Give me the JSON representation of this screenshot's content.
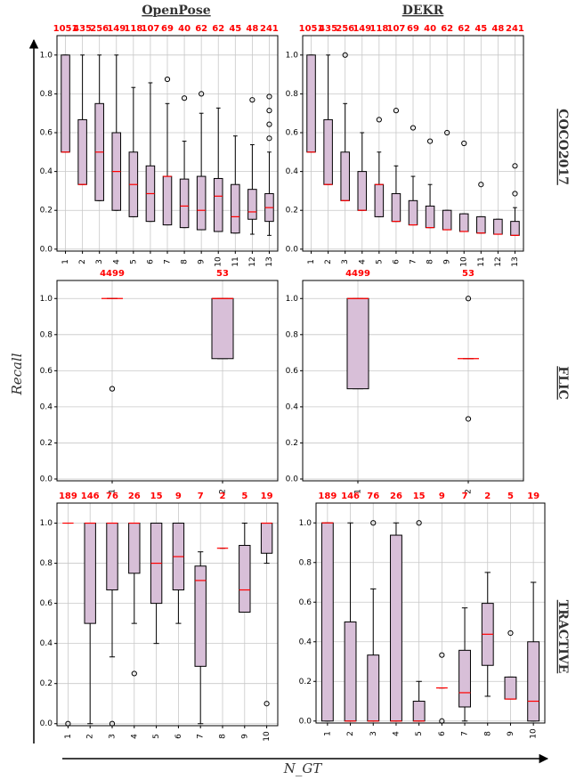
{
  "figure": {
    "column_titles": [
      "OpenPose",
      "DEKR"
    ],
    "row_titles": [
      "COCO2017",
      "FLIC",
      "TRACTIVE"
    ],
    "ylabel": "Recall",
    "xlabel": "N_GT"
  },
  "chart_data": [
    {
      "type": "box",
      "color": "#d8bfd8",
      "median_color": "#ff0000",
      "grid": true,
      "ylim": [
        -0.01,
        1.1
      ],
      "yticks": [
        {
          "value": 0,
          "label": "0.0"
        },
        {
          "value": 0.2,
          "label": "0.2"
        },
        {
          "value": 0.4,
          "label": "0.4"
        },
        {
          "value": 0.6,
          "label": "0.6"
        },
        {
          "value": 0.8,
          "label": "0.8"
        },
        {
          "value": 1,
          "label": "1.0"
        }
      ],
      "categories": [
        "1",
        "2",
        "3",
        "4",
        "5",
        "6",
        "7",
        "8",
        "9",
        "10",
        "11",
        "12",
        "13"
      ],
      "counts": [
        1051,
        435,
        256,
        149,
        118,
        107,
        69,
        40,
        62,
        62,
        45,
        48,
        241
      ],
      "boxes": [
        {
          "low": 0.5,
          "q1": 0.5,
          "median": 0.5,
          "q3": 1,
          "high": 1,
          "outliers": []
        },
        {
          "low": 0.333,
          "q1": 0.333,
          "median": 0.333,
          "q3": 0.667,
          "high": 1,
          "outliers": []
        },
        {
          "low": 0.25,
          "q1": 0.25,
          "median": 0.5,
          "q3": 0.75,
          "high": 1,
          "outliers": []
        },
        {
          "low": 0.2,
          "q1": 0.2,
          "median": 0.4,
          "q3": 0.6,
          "high": 1,
          "outliers": []
        },
        {
          "low": 0.167,
          "q1": 0.167,
          "median": 0.333,
          "q3": 0.5,
          "high": 0.833,
          "outliers": []
        },
        {
          "low": 0.143,
          "q1": 0.143,
          "median": 0.286,
          "q3": 0.429,
          "high": 0.857,
          "outliers": []
        },
        {
          "low": 0.125,
          "q1": 0.125,
          "median": 0.375,
          "q3": 0.375,
          "high": 0.75,
          "outliers": [
            0.875
          ]
        },
        {
          "low": 0.111,
          "q1": 0.111,
          "median": 0.222,
          "q3": 0.361,
          "high": 0.556,
          "outliers": [
            0.778
          ]
        },
        {
          "low": 0.1,
          "q1": 0.1,
          "median": 0.2,
          "q3": 0.375,
          "high": 0.7,
          "outliers": [
            0.8
          ]
        },
        {
          "low": 0.091,
          "q1": 0.091,
          "median": 0.273,
          "q3": 0.364,
          "high": 0.727,
          "outliers": []
        },
        {
          "low": 0.083,
          "q1": 0.083,
          "median": 0.167,
          "q3": 0.333,
          "high": 0.583,
          "outliers": []
        },
        {
          "low": 0.077,
          "q1": 0.154,
          "median": 0.192,
          "q3": 0.308,
          "high": 0.538,
          "outliers": [
            0.769
          ]
        },
        {
          "low": 0.071,
          "q1": 0.143,
          "median": 0.214,
          "q3": 0.286,
          "high": 0.5,
          "outliers": [
            0.571,
            0.643,
            0.714,
            0.786
          ]
        }
      ]
    },
    {
      "type": "box",
      "color": "#d8bfd8",
      "median_color": "#ff0000",
      "grid": true,
      "ylim": [
        -0.01,
        1.1
      ],
      "yticks": [
        {
          "value": 0,
          "label": "0.0"
        },
        {
          "value": 0.2,
          "label": "0.2"
        },
        {
          "value": 0.4,
          "label": "0.4"
        },
        {
          "value": 0.6,
          "label": "0.6"
        },
        {
          "value": 0.8,
          "label": "0.8"
        },
        {
          "value": 1,
          "label": "1.0"
        }
      ],
      "categories": [
        "1",
        "2",
        "3",
        "4",
        "5",
        "6",
        "7",
        "8",
        "9",
        "10",
        "11",
        "12",
        "13"
      ],
      "counts": [
        1051,
        435,
        256,
        149,
        118,
        107,
        69,
        40,
        62,
        62,
        45,
        48,
        241
      ],
      "boxes": [
        {
          "low": 0.5,
          "q1": 0.5,
          "median": 0.5,
          "q3": 1,
          "high": 1,
          "outliers": []
        },
        {
          "low": 0.333,
          "q1": 0.333,
          "median": 0.333,
          "q3": 0.667,
          "high": 1,
          "outliers": []
        },
        {
          "low": 0.25,
          "q1": 0.25,
          "median": 0.25,
          "q3": 0.5,
          "high": 0.75,
          "outliers": [
            1
          ]
        },
        {
          "low": 0.2,
          "q1": 0.2,
          "median": 0.2,
          "q3": 0.4,
          "high": 0.6,
          "outliers": []
        },
        {
          "low": 0.167,
          "q1": 0.167,
          "median": 0.333,
          "q3": 0.333,
          "high": 0.5,
          "outliers": [
            0.667
          ]
        },
        {
          "low": 0.143,
          "q1": 0.143,
          "median": 0.143,
          "q3": 0.286,
          "high": 0.429,
          "outliers": [
            0.714
          ]
        },
        {
          "low": 0.125,
          "q1": 0.125,
          "median": 0.125,
          "q3": 0.25,
          "high": 0.375,
          "outliers": [
            0.625
          ]
        },
        {
          "low": 0.111,
          "q1": 0.111,
          "median": 0.111,
          "q3": 0.222,
          "high": 0.333,
          "outliers": [
            0.556
          ]
        },
        {
          "low": 0.1,
          "q1": 0.1,
          "median": 0.1,
          "q3": 0.2,
          "high": 0.2,
          "outliers": [
            0.6
          ]
        },
        {
          "low": 0.091,
          "q1": 0.091,
          "median": 0.091,
          "q3": 0.182,
          "high": 0.182,
          "outliers": [
            0.545
          ]
        },
        {
          "low": 0.083,
          "q1": 0.083,
          "median": 0.083,
          "q3": 0.167,
          "high": 0.167,
          "outliers": [
            0.333
          ]
        },
        {
          "low": 0.077,
          "q1": 0.077,
          "median": 0.077,
          "q3": 0.154,
          "high": 0.154,
          "outliers": []
        },
        {
          "low": 0.071,
          "q1": 0.071,
          "median": 0.071,
          "q3": 0.143,
          "high": 0.214,
          "outliers": [
            0.286,
            0.429
          ]
        }
      ]
    },
    {
      "type": "box",
      "color": "#d8bfd8",
      "median_color": "#ff0000",
      "grid": true,
      "ylim": [
        -0.01,
        1.1
      ],
      "yticks": [
        {
          "value": 0,
          "label": "0.0"
        },
        {
          "value": 0.2,
          "label": "0.2"
        },
        {
          "value": 0.4,
          "label": "0.4"
        },
        {
          "value": 0.6,
          "label": "0.6"
        },
        {
          "value": 0.8,
          "label": "0.8"
        },
        {
          "value": 1,
          "label": "1.0"
        }
      ],
      "categories": [
        "1",
        "2"
      ],
      "counts": [
        4499,
        53
      ],
      "boxes": [
        {
          "low": 1,
          "q1": 1,
          "median": 1,
          "q3": 1,
          "high": 1,
          "outliers": [
            0.5
          ]
        },
        {
          "low": 0.667,
          "q1": 0.667,
          "median": 1,
          "q3": 1,
          "high": 1,
          "outliers": []
        }
      ]
    },
    {
      "type": "box",
      "color": "#d8bfd8",
      "median_color": "#ff0000",
      "grid": true,
      "ylim": [
        -0.01,
        1.1
      ],
      "yticks": [
        {
          "value": 0,
          "label": "0.0"
        },
        {
          "value": 0.2,
          "label": "0.2"
        },
        {
          "value": 0.4,
          "label": "0.4"
        },
        {
          "value": 0.6,
          "label": "0.6"
        },
        {
          "value": 0.8,
          "label": "0.8"
        },
        {
          "value": 1,
          "label": "1.0"
        }
      ],
      "categories": [
        "1",
        "2"
      ],
      "counts": [
        4499,
        53
      ],
      "boxes": [
        {
          "low": 0.5,
          "q1": 0.5,
          "median": 1,
          "q3": 1,
          "high": 1,
          "outliers": []
        },
        {
          "low": 0.667,
          "q1": 0.667,
          "median": 0.667,
          "q3": 0.667,
          "high": 0.667,
          "outliers": [
            1,
            0.333
          ]
        }
      ]
    },
    {
      "type": "box",
      "color": "#d8bfd8",
      "median_color": "#ff0000",
      "grid": true,
      "ylim": [
        -0.01,
        1.1
      ],
      "yticks": [
        {
          "value": 0,
          "label": "0.0"
        },
        {
          "value": 0.2,
          "label": "0.2"
        },
        {
          "value": 0.4,
          "label": "0.4"
        },
        {
          "value": 0.6,
          "label": "0.6"
        },
        {
          "value": 0.8,
          "label": "0.8"
        },
        {
          "value": 1,
          "label": "1.0"
        }
      ],
      "categories": [
        "1",
        "2",
        "3",
        "4",
        "5",
        "6",
        "7",
        "8",
        "9",
        "10"
      ],
      "counts": [
        189,
        146,
        76,
        26,
        15,
        9,
        7,
        2,
        5,
        19
      ],
      "boxes": [
        {
          "low": 1,
          "q1": 1,
          "median": 1,
          "q3": 1,
          "high": 1,
          "outliers": [
            0
          ]
        },
        {
          "low": 0,
          "q1": 0.5,
          "median": 1,
          "q3": 1,
          "high": 1,
          "outliers": []
        },
        {
          "low": 0.333,
          "q1": 0.667,
          "median": 1,
          "q3": 1,
          "high": 1,
          "outliers": [
            0
          ]
        },
        {
          "low": 0.5,
          "q1": 0.75,
          "median": 1,
          "q3": 1,
          "high": 1,
          "outliers": [
            0.25
          ]
        },
        {
          "low": 0.4,
          "q1": 0.6,
          "median": 0.8,
          "q3": 1,
          "high": 1,
          "outliers": []
        },
        {
          "low": 0.5,
          "q1": 0.667,
          "median": 0.833,
          "q3": 1,
          "high": 1,
          "outliers": []
        },
        {
          "low": 0,
          "q1": 0.286,
          "median": 0.714,
          "q3": 0.786,
          "high": 0.857,
          "outliers": []
        },
        {
          "low": 0.875,
          "q1": 0.875,
          "median": 0.875,
          "q3": 0.875,
          "high": 0.875,
          "outliers": []
        },
        {
          "low": 0.556,
          "q1": 0.556,
          "median": 0.667,
          "q3": 0.889,
          "high": 1,
          "outliers": []
        },
        {
          "low": 0.8,
          "q1": 0.85,
          "median": 1,
          "q3": 1,
          "high": 1,
          "outliers": [
            0.1
          ]
        }
      ]
    },
    {
      "type": "box",
      "color": "#d8bfd8",
      "median_color": "#ff0000",
      "grid": true,
      "ylim": [
        -0.01,
        1.1
      ],
      "yticks": [
        {
          "value": 0,
          "label": "0.0"
        },
        {
          "value": 0.2,
          "label": "0.2"
        },
        {
          "value": 0.4,
          "label": "0.4"
        },
        {
          "value": 0.6,
          "label": "0.6"
        },
        {
          "value": 0.8,
          "label": "0.8"
        },
        {
          "value": 1,
          "label": "1.0"
        }
      ],
      "categories": [
        "1",
        "2",
        "3",
        "4",
        "5",
        "6",
        "7",
        "8",
        "9",
        "10"
      ],
      "counts": [
        189,
        146,
        76,
        26,
        15,
        9,
        7,
        2,
        5,
        19
      ],
      "boxes": [
        {
          "low": 0,
          "q1": 0,
          "median": 1,
          "q3": 1,
          "high": 1,
          "outliers": []
        },
        {
          "low": 0,
          "q1": 0,
          "median": 0,
          "q3": 0.5,
          "high": 1,
          "outliers": []
        },
        {
          "low": 0,
          "q1": 0,
          "median": 0,
          "q3": 0.333,
          "high": 0.667,
          "outliers": [
            1
          ]
        },
        {
          "low": 0,
          "q1": 0,
          "median": 0,
          "q3": 0.938,
          "high": 1,
          "outliers": []
        },
        {
          "low": 0,
          "q1": 0,
          "median": 0,
          "q3": 0.1,
          "high": 0.2,
          "outliers": [
            1
          ]
        },
        {
          "low": 0.167,
          "q1": 0.167,
          "median": 0.167,
          "q3": 0.167,
          "high": 0.167,
          "outliers": [
            0.333,
            0
          ]
        },
        {
          "low": 0,
          "q1": 0.071,
          "median": 0.143,
          "q3": 0.357,
          "high": 0.571,
          "outliers": []
        },
        {
          "low": 0.125,
          "q1": 0.281,
          "median": 0.438,
          "q3": 0.594,
          "high": 0.75,
          "outliers": []
        },
        {
          "low": 0.111,
          "q1": 0.111,
          "median": 0.111,
          "q3": 0.222,
          "high": 0.222,
          "outliers": [
            0.444
          ]
        },
        {
          "low": 0,
          "q1": 0,
          "median": 0.1,
          "q3": 0.4,
          "high": 0.7,
          "outliers": []
        }
      ]
    }
  ]
}
